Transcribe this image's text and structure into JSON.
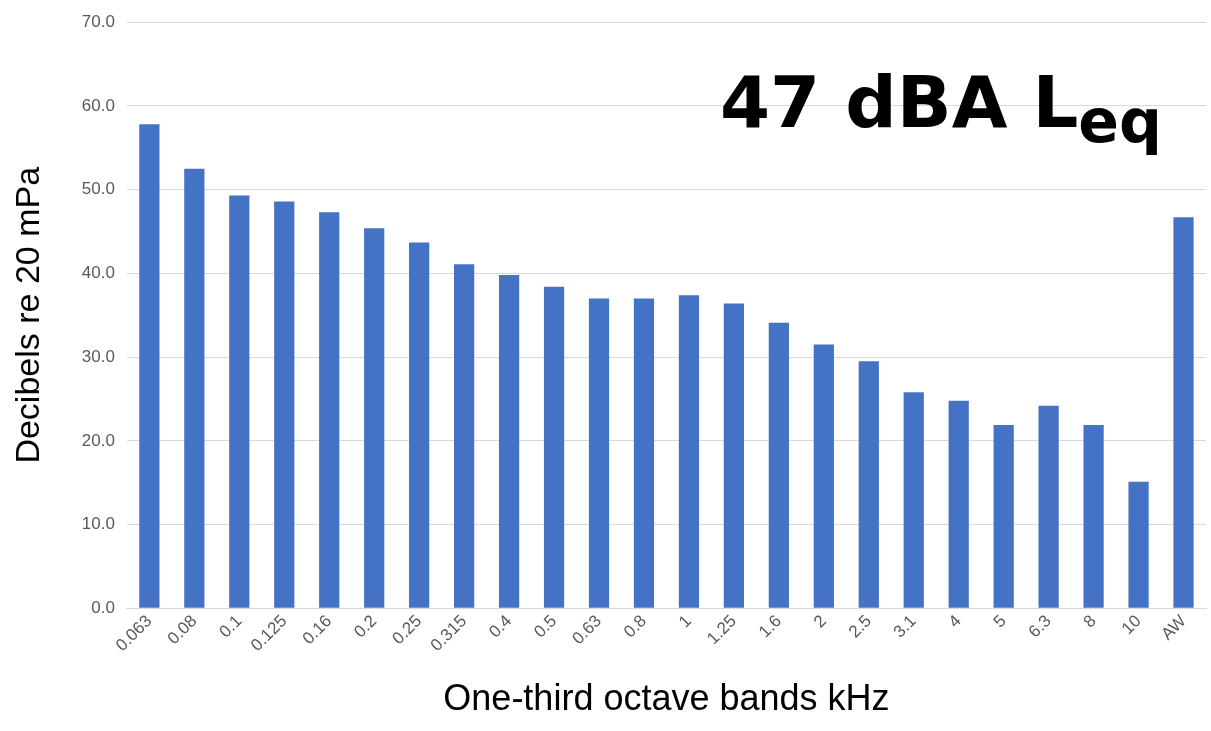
{
  "chart_data": {
    "type": "bar",
    "xlabel": "One-third octave bands kHz",
    "ylabel": "Decibels re 20 mPa",
    "categories": [
      "0.063",
      "0.08",
      "0.1",
      "0.125",
      "0.16",
      "0.2",
      "0.25",
      "0.315",
      "0.4",
      "0.5",
      "0.63",
      "0.8",
      "1",
      "1.25",
      "1.6",
      "2",
      "2.5",
      "3.1",
      "4",
      "5",
      "6.3",
      "8",
      "10",
      "AW"
    ],
    "values": [
      57.8,
      52.5,
      49.3,
      48.6,
      47.3,
      45.4,
      43.7,
      41.1,
      39.8,
      38.4,
      37.0,
      37.0,
      37.4,
      36.4,
      34.1,
      31.5,
      29.5,
      25.8,
      24.8,
      21.9,
      24.2,
      21.9,
      15.1,
      46.7
    ],
    "color": "#4472c4",
    "ylim": [
      0,
      70
    ],
    "yticks": [
      {
        "value": 0,
        "label": "0.0"
      },
      {
        "value": 10,
        "label": "10.0"
      },
      {
        "value": 20,
        "label": "20.0"
      },
      {
        "value": 30,
        "label": "30.0"
      },
      {
        "value": 40,
        "label": "40.0"
      },
      {
        "value": 50,
        "label": "50.0"
      },
      {
        "value": 60,
        "label": "60.0"
      },
      {
        "value": 70,
        "label": "70.0"
      }
    ],
    "grid": "y",
    "annotations": [
      "47 dBA L$_{eq}$"
    ]
  }
}
